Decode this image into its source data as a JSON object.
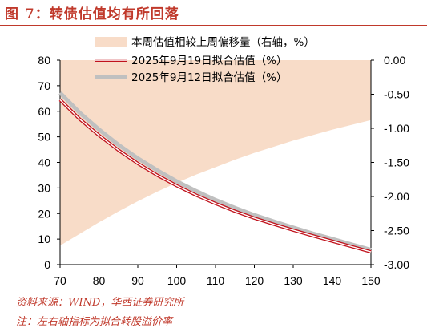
{
  "header": {
    "title": "图 7：转债估值均有所回落"
  },
  "footer": {
    "source": "资料来源：WIND，华西证券研究所",
    "note": "注：左右轴指标为拟合转股溢价率"
  },
  "colors": {
    "title": "#c0392b",
    "shift_area": "#f8dcc8",
    "line_sep19": "#c0121c",
    "line_sep12": "#c0c0c0"
  },
  "chart_data": {
    "type": "line",
    "x": [
      70,
      75,
      80,
      85,
      90,
      95,
      100,
      105,
      110,
      115,
      120,
      125,
      130,
      135,
      140,
      145,
      150
    ],
    "xlim": [
      70,
      150
    ],
    "ylim_left": [
      0,
      80
    ],
    "ylim_right": [
      -3.0,
      0.0
    ],
    "x_ticks": [
      "70",
      "80",
      "90",
      "100",
      "110",
      "120",
      "130",
      "140",
      "150"
    ],
    "y_left_ticks": [
      "0",
      "10",
      "20",
      "30",
      "40",
      "50",
      "60",
      "70",
      "80"
    ],
    "y_right_ticks": [
      "0.00",
      "-0.50",
      "-1.00",
      "-1.50",
      "-2.00",
      "-2.50",
      "-3.00"
    ],
    "series": [
      {
        "name": "本周估值相较上周偏移量（右轴，%）",
        "kind": "area",
        "axis": "right",
        "values": [
          -2.72,
          -2.55,
          -2.38,
          -2.22,
          -2.07,
          -1.93,
          -1.8,
          -1.68,
          -1.57,
          -1.46,
          -1.36,
          -1.27,
          -1.18,
          -1.1,
          -1.02,
          -0.95,
          -0.88
        ]
      },
      {
        "name": "2025年9月19日拟合估值（%）",
        "kind": "line",
        "axis": "left",
        "values": [
          64.5,
          57.0,
          50.6,
          44.8,
          39.6,
          35.0,
          30.9,
          27.2,
          23.9,
          20.9,
          18.2,
          15.8,
          13.5,
          11.3,
          9.2,
          7.1,
          5.0
        ]
      },
      {
        "name": "2025年9月12日拟合估值（%）",
        "kind": "line",
        "axis": "left",
        "values": [
          67.2,
          59.5,
          52.9,
          46.9,
          41.6,
          36.9,
          32.6,
          28.8,
          25.3,
          22.2,
          19.4,
          16.9,
          14.5,
          12.2,
          10.1,
          7.9,
          5.8
        ]
      }
    ]
  }
}
